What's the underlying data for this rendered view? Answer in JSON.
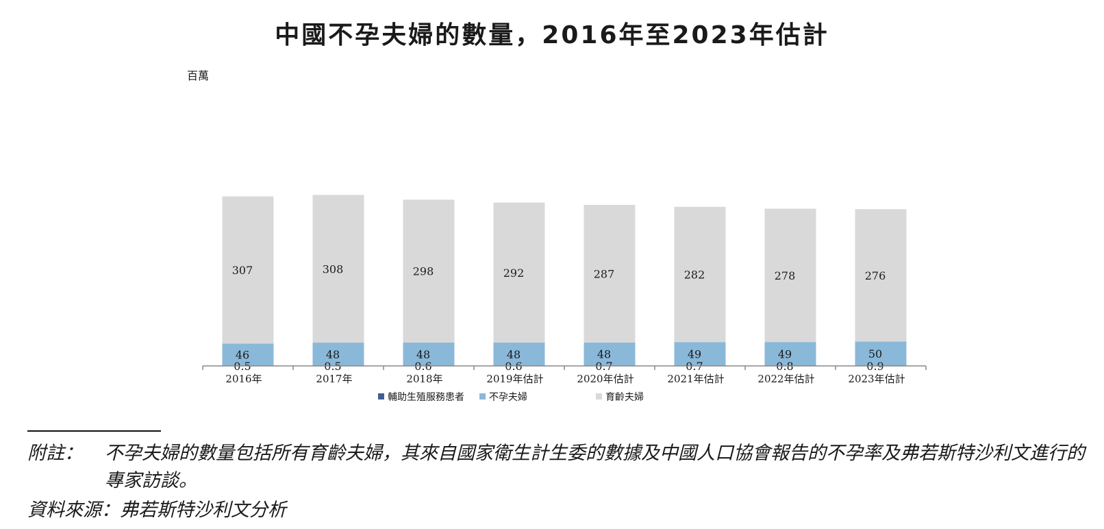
{
  "title": "中國不孕夫婦的數量，2016年至2023年估計",
  "chart_data": {
    "type": "bar",
    "stacked": true,
    "unit_label": "百萬",
    "categories": [
      "2016年",
      "2017年",
      "2018年",
      "2019年估計",
      "2020年估計",
      "2021年估計",
      "2022年估計",
      "2023年估計"
    ],
    "series": [
      {
        "name": "輔助生殖服務患者",
        "color": "#3f5f94",
        "values": [
          0.5,
          0.5,
          0.6,
          0.6,
          0.7,
          0.7,
          0.8,
          0.9
        ],
        "labels": [
          "0.5",
          "0.5",
          "0.6",
          "0.6",
          "0.7",
          "0.7",
          "0.8",
          "0.9"
        ]
      },
      {
        "name": "不孕夫婦",
        "color": "#8ab8d9",
        "values": [
          46,
          48,
          48,
          48,
          48,
          49,
          49,
          50
        ],
        "labels": [
          "46",
          "48",
          "48",
          "48",
          "48",
          "49",
          "49",
          "50"
        ]
      },
      {
        "name": "育齡夫婦",
        "color": "#d9d9d9",
        "values": [
          307,
          308,
          298,
          292,
          287,
          282,
          278,
          276
        ],
        "labels": [
          "307",
          "308",
          "298",
          "292",
          "287",
          "282",
          "278",
          "276"
        ]
      }
    ],
    "legend_position": "bottom",
    "grid": false
  },
  "notes": {
    "label": "附註：",
    "text": "不孕夫婦的數量包括所有育齡夫婦，其來自國家衛生計生委的數據及中國人口協會報告的不孕率及弗若斯特沙利文進行的專家訪談。",
    "source": "資料來源：弗若斯特沙利文分析"
  }
}
